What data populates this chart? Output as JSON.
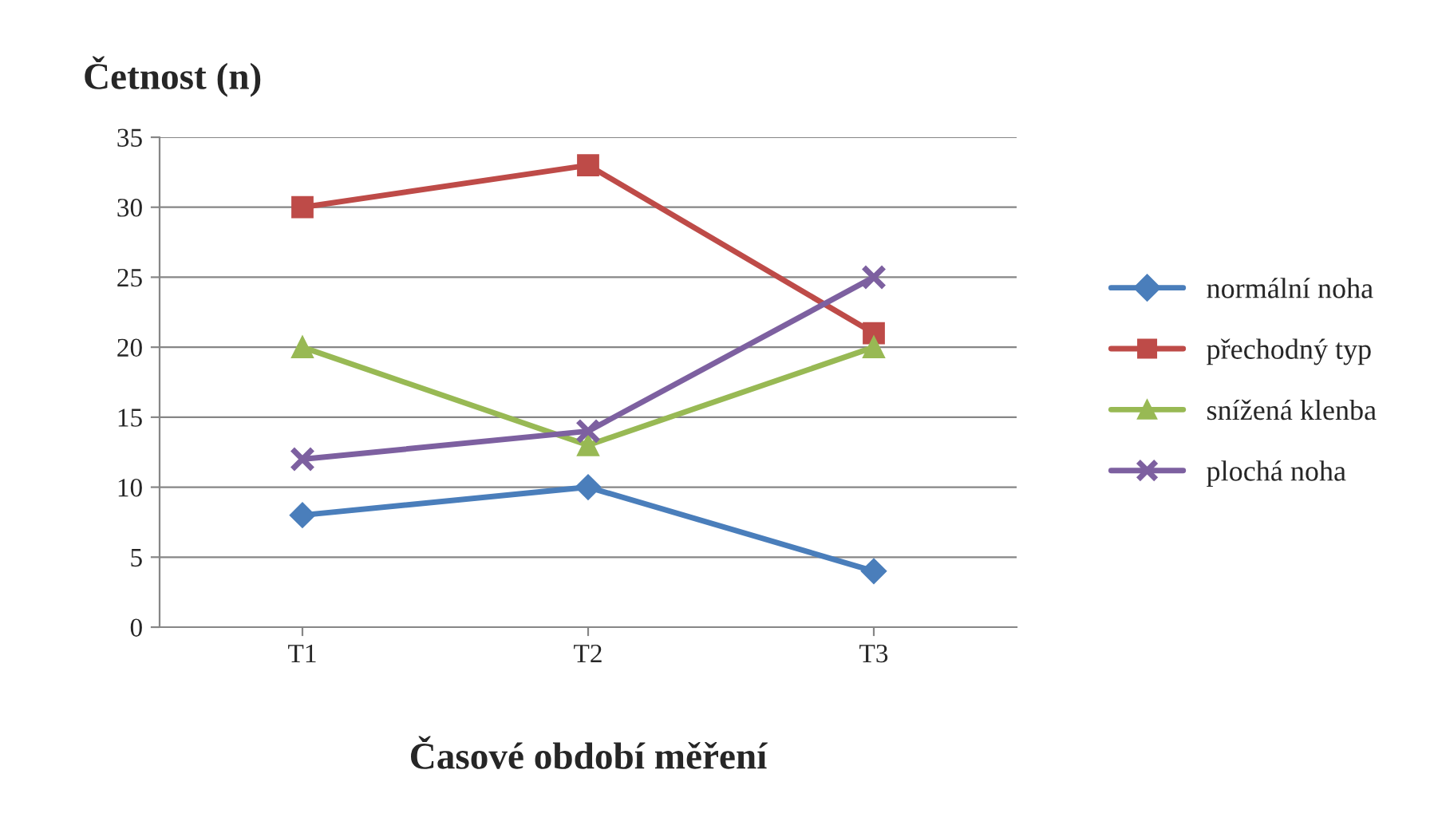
{
  "chart_data": {
    "type": "line",
    "xlabel": "Časové období měření",
    "ylabel": "Četnost (n)",
    "categories": [
      "T1",
      "T2",
      "T3"
    ],
    "series": [
      {
        "name": "normální noha",
        "color": "#4a7ebb",
        "marker": "diamond",
        "values": [
          8,
          10,
          4
        ]
      },
      {
        "name": "přechodný typ",
        "color": "#be4b48",
        "marker": "square",
        "values": [
          30,
          33,
          21
        ]
      },
      {
        "name": "snížená klenba",
        "color": "#98b954",
        "marker": "triangle",
        "values": [
          20,
          13,
          20
        ]
      },
      {
        "name": "plochá noha",
        "color": "#7d60a0",
        "marker": "cross",
        "values": [
          12,
          14,
          25
        ]
      }
    ],
    "ylim": [
      0,
      35
    ],
    "yticks": [
      0,
      5,
      10,
      15,
      20,
      25,
      30,
      35
    ],
    "grid": "y",
    "legend": "right",
    "line_style": "solid"
  }
}
